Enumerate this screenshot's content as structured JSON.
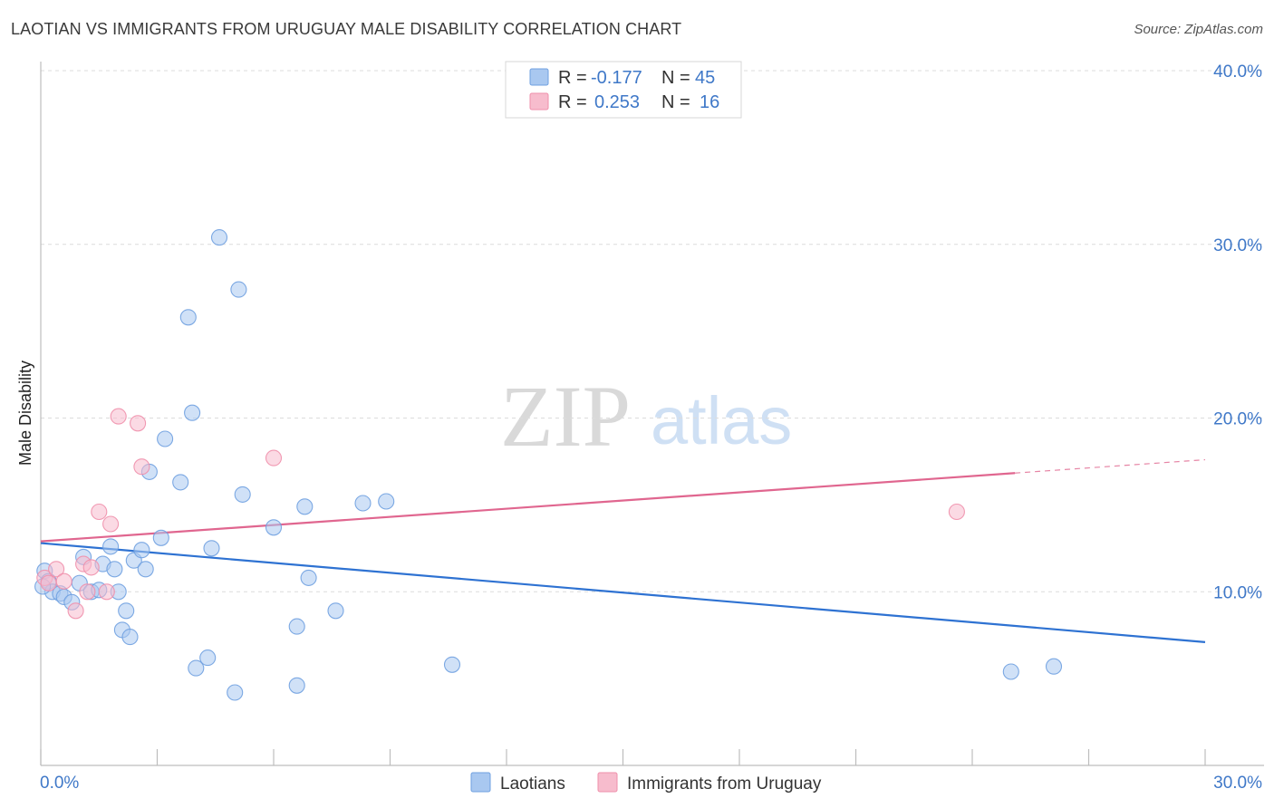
{
  "header": {
    "title": "LAOTIAN VS IMMIGRANTS FROM URUGUAY MALE DISABILITY CORRELATION CHART",
    "source": "Source: ZipAtlas.com"
  },
  "watermark": {
    "zip": "ZIP",
    "atlas": "atlas"
  },
  "legend_top": [
    {
      "r_label": "R =",
      "r_value": "-0.177",
      "n_label": "N =",
      "n_value": "45",
      "color": "#a9c8f0"
    },
    {
      "r_label": "R =",
      "r_value": "0.253",
      "n_label": "N =",
      "n_value": "16",
      "color": "#f7bccd"
    }
  ],
  "legend_bottom": [
    {
      "label": "Laotians",
      "color": "#a9c8f0"
    },
    {
      "label": "Immigrants from Uruguay",
      "color": "#f7bccd"
    }
  ],
  "chart_data": {
    "type": "scatter",
    "title": "LAOTIAN VS IMMIGRANTS FROM URUGUAY MALE DISABILITY CORRELATION CHART",
    "xlabel": "",
    "ylabel": "Male Disability",
    "xlim": [
      0,
      30
    ],
    "ylim": [
      0,
      40
    ],
    "x_tick_labels": [
      "0.0%",
      "30.0%"
    ],
    "y_ticks": [
      10,
      20,
      30,
      40
    ],
    "y_tick_labels": [
      "10.0%",
      "20.0%",
      "30.0%",
      "40.0%"
    ],
    "grid": true,
    "legend_position": "top-center",
    "series": [
      {
        "name": "Laotians",
        "color": "#6fa0e0",
        "fill": "#a9c8f0",
        "points": [
          [
            0.1,
            11.2
          ],
          [
            0.2,
            10.6
          ],
          [
            0.3,
            10.0
          ],
          [
            0.5,
            9.9
          ],
          [
            0.6,
            9.7
          ],
          [
            0.8,
            9.4
          ],
          [
            1.0,
            10.5
          ],
          [
            1.1,
            12.0
          ],
          [
            1.3,
            10.0
          ],
          [
            1.5,
            10.1
          ],
          [
            1.6,
            11.6
          ],
          [
            1.8,
            12.6
          ],
          [
            1.9,
            11.3
          ],
          [
            2.0,
            10.0
          ],
          [
            2.1,
            7.8
          ],
          [
            2.2,
            8.9
          ],
          [
            2.3,
            7.4
          ],
          [
            2.4,
            11.8
          ],
          [
            2.6,
            12.4
          ],
          [
            2.7,
            11.3
          ],
          [
            2.8,
            16.9
          ],
          [
            3.1,
            13.1
          ],
          [
            3.2,
            18.8
          ],
          [
            3.6,
            16.3
          ],
          [
            3.8,
            25.8
          ],
          [
            3.9,
            20.3
          ],
          [
            4.0,
            5.6
          ],
          [
            4.3,
            6.2
          ],
          [
            4.4,
            12.5
          ],
          [
            4.6,
            30.4
          ],
          [
            5.0,
            4.2
          ],
          [
            5.1,
            27.4
          ],
          [
            5.2,
            15.6
          ],
          [
            6.0,
            13.7
          ],
          [
            6.6,
            8.0
          ],
          [
            6.6,
            4.6
          ],
          [
            6.8,
            14.9
          ],
          [
            6.9,
            10.8
          ],
          [
            7.6,
            8.9
          ],
          [
            8.3,
            15.1
          ],
          [
            8.9,
            15.2
          ],
          [
            10.6,
            5.8
          ],
          [
            25.0,
            5.4
          ],
          [
            26.1,
            5.7
          ],
          [
            0.05,
            10.3
          ]
        ],
        "trend": {
          "x0": 0,
          "y0": 12.8,
          "x1": 30,
          "y1": 7.1
        }
      },
      {
        "name": "Immigrants from Uruguay",
        "color": "#ef8fab",
        "fill": "#f7bccd",
        "points": [
          [
            0.1,
            10.8
          ],
          [
            0.2,
            10.5
          ],
          [
            0.4,
            11.3
          ],
          [
            0.6,
            10.6
          ],
          [
            0.9,
            8.9
          ],
          [
            1.1,
            11.6
          ],
          [
            1.3,
            11.4
          ],
          [
            1.5,
            14.6
          ],
          [
            1.7,
            10.0
          ],
          [
            1.8,
            13.9
          ],
          [
            2.0,
            20.1
          ],
          [
            2.5,
            19.7
          ],
          [
            2.6,
            17.2
          ],
          [
            6.0,
            17.7
          ],
          [
            23.6,
            14.6
          ],
          [
            1.2,
            10.0
          ]
        ],
        "trend": {
          "x0": 0,
          "y0": 12.9,
          "x1": 30,
          "y1": 17.6,
          "solid_until_x": 25.1
        }
      }
    ]
  }
}
